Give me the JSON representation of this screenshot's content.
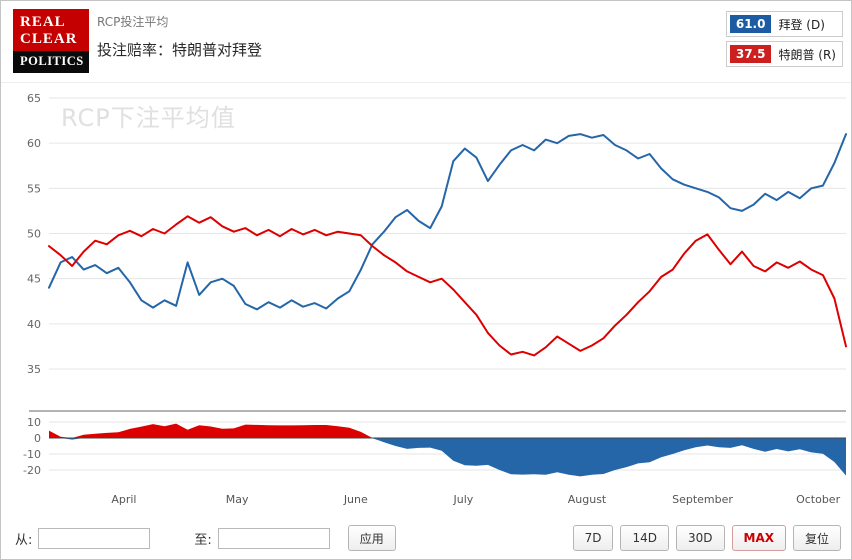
{
  "header": {
    "logo": {
      "line1": "REAL",
      "line2": "CLEAR",
      "line3": "POLITICS"
    },
    "subtitle": "RCP投注平均",
    "title": "投注赔率：特朗普对拜登"
  },
  "legend": [
    {
      "value": "61.0",
      "label": "拜登 (D)",
      "color": "#1d5ca3"
    },
    {
      "value": "37.5",
      "label": "特朗普 (R)",
      "color": "#cc1f1f"
    }
  ],
  "chart_data": {
    "type": "line",
    "watermark": "RCP下注平均值",
    "title": "RCP投注平均 — 投注赔率：特朗普对拜登",
    "main_yticks": [
      65,
      60,
      55,
      50,
      45,
      40,
      35
    ],
    "main_ylim": [
      35,
      65
    ],
    "spread_yticks": [
      10,
      0,
      -10,
      -20
    ],
    "spread_ylim": [
      -27,
      13
    ],
    "spread_definition": "特朗普 minus 拜登 (red above 0, blue below 0)",
    "grid": true,
    "legend_position": "top-right",
    "x_months": [
      {
        "label": "April",
        "pos": 0.094
      },
      {
        "label": "May",
        "pos": 0.236
      },
      {
        "label": "June",
        "pos": 0.385
      },
      {
        "label": "July",
        "pos": 0.52
      },
      {
        "label": "August",
        "pos": 0.675
      },
      {
        "label": "September",
        "pos": 0.82
      },
      {
        "label": "October",
        "pos": 0.965
      }
    ],
    "series": [
      {
        "name": "拜登 (D)",
        "color": "#2566a8",
        "final_value": 61.0,
        "values": [
          44.0,
          46.8,
          47.4,
          46.0,
          46.5,
          45.6,
          46.2,
          44.6,
          42.6,
          41.8,
          42.6,
          42.0,
          46.8,
          43.2,
          44.6,
          45.0,
          44.2,
          42.2,
          41.6,
          42.4,
          41.8,
          42.6,
          41.9,
          42.3,
          41.7,
          42.8,
          43.6,
          46.0,
          48.8,
          50.2,
          51.8,
          52.6,
          51.4,
          50.6,
          53.0,
          58.0,
          59.4,
          58.4,
          55.8,
          57.6,
          59.2,
          59.8,
          59.2,
          60.4,
          60.0,
          60.8,
          61.0,
          60.6,
          60.9,
          59.8,
          59.2,
          58.3,
          58.8,
          57.2,
          56.0,
          55.4,
          55.0,
          54.6,
          54.0,
          52.8,
          52.5,
          53.2,
          54.4,
          53.7,
          54.6,
          53.9,
          55.0,
          55.3,
          57.8,
          61.0
        ]
      },
      {
        "name": "特朗普 (R)",
        "color": "#dd0000",
        "final_value": 37.5,
        "values": [
          48.6,
          47.6,
          46.4,
          48.0,
          49.2,
          48.8,
          49.8,
          50.3,
          49.7,
          50.5,
          50.0,
          51.0,
          51.9,
          51.2,
          51.8,
          50.8,
          50.2,
          50.6,
          49.8,
          50.4,
          49.7,
          50.5,
          49.9,
          50.4,
          49.8,
          50.2,
          50.0,
          49.8,
          48.6,
          47.6,
          46.8,
          45.8,
          45.2,
          44.6,
          45.0,
          43.8,
          42.4,
          41.0,
          39.0,
          37.6,
          36.6,
          36.9,
          36.5,
          37.4,
          38.6,
          37.8,
          37.0,
          37.6,
          38.4,
          39.8,
          41.0,
          42.4,
          43.6,
          45.2,
          46.0,
          47.8,
          49.2,
          49.9,
          48.2,
          46.6,
          48.0,
          46.4,
          45.8,
          46.8,
          46.2,
          46.9,
          46.0,
          45.4,
          42.8,
          37.5
        ]
      }
    ]
  },
  "controls": {
    "from_label": "从:",
    "to_label": "至:",
    "from_value": "",
    "to_value": "",
    "apply_label": "应用",
    "range_buttons": [
      {
        "label": "7D",
        "active": false
      },
      {
        "label": "14D",
        "active": false
      },
      {
        "label": "30D",
        "active": false
      },
      {
        "label": "MAX",
        "active": true
      },
      {
        "label": "复位",
        "active": false
      }
    ]
  }
}
